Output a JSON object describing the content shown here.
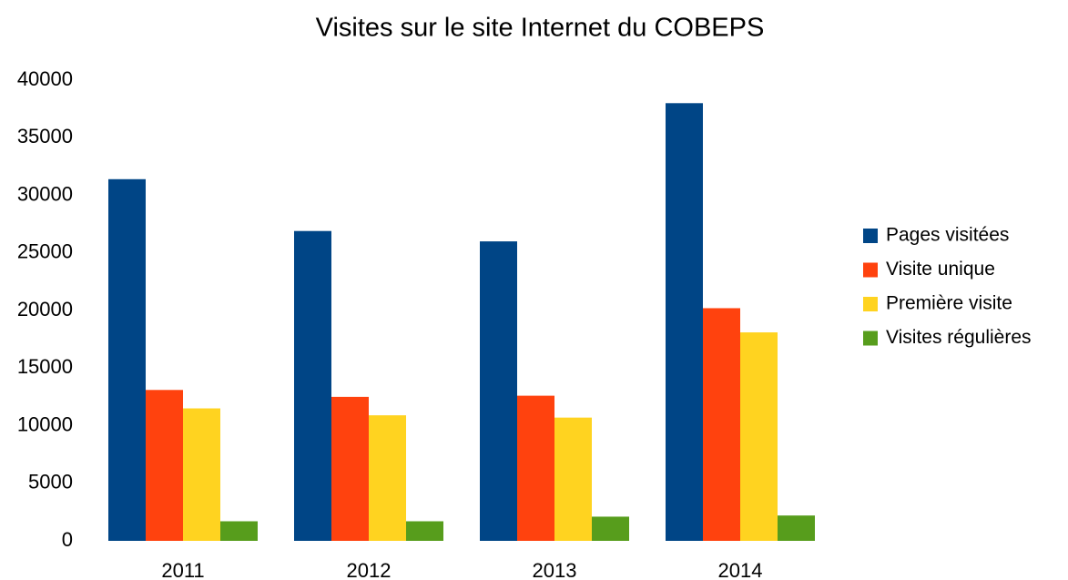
{
  "chart_data": {
    "type": "bar",
    "title": "Visites sur le site Internet du COBEPS",
    "categories": [
      "2011",
      "2012",
      "2013",
      "2014"
    ],
    "series": [
      {
        "name": "Pages visitées",
        "color": "#004586",
        "values": [
          31400,
          26900,
          26000,
          38000
        ]
      },
      {
        "name": "Visite unique",
        "color": "#ff420e",
        "values": [
          13100,
          12500,
          12600,
          20200
        ]
      },
      {
        "name": "Première visite",
        "color": "#ffd320",
        "values": [
          11500,
          10900,
          10700,
          18100
        ]
      },
      {
        "name": "Visites régulières",
        "color": "#579d1c",
        "values": [
          1700,
          1700,
          2100,
          2200
        ]
      }
    ],
    "ylim": [
      0,
      40000
    ],
    "yticks": [
      0,
      5000,
      10000,
      15000,
      20000,
      25000,
      30000,
      35000,
      40000
    ],
    "grid": false,
    "legend": "right"
  }
}
